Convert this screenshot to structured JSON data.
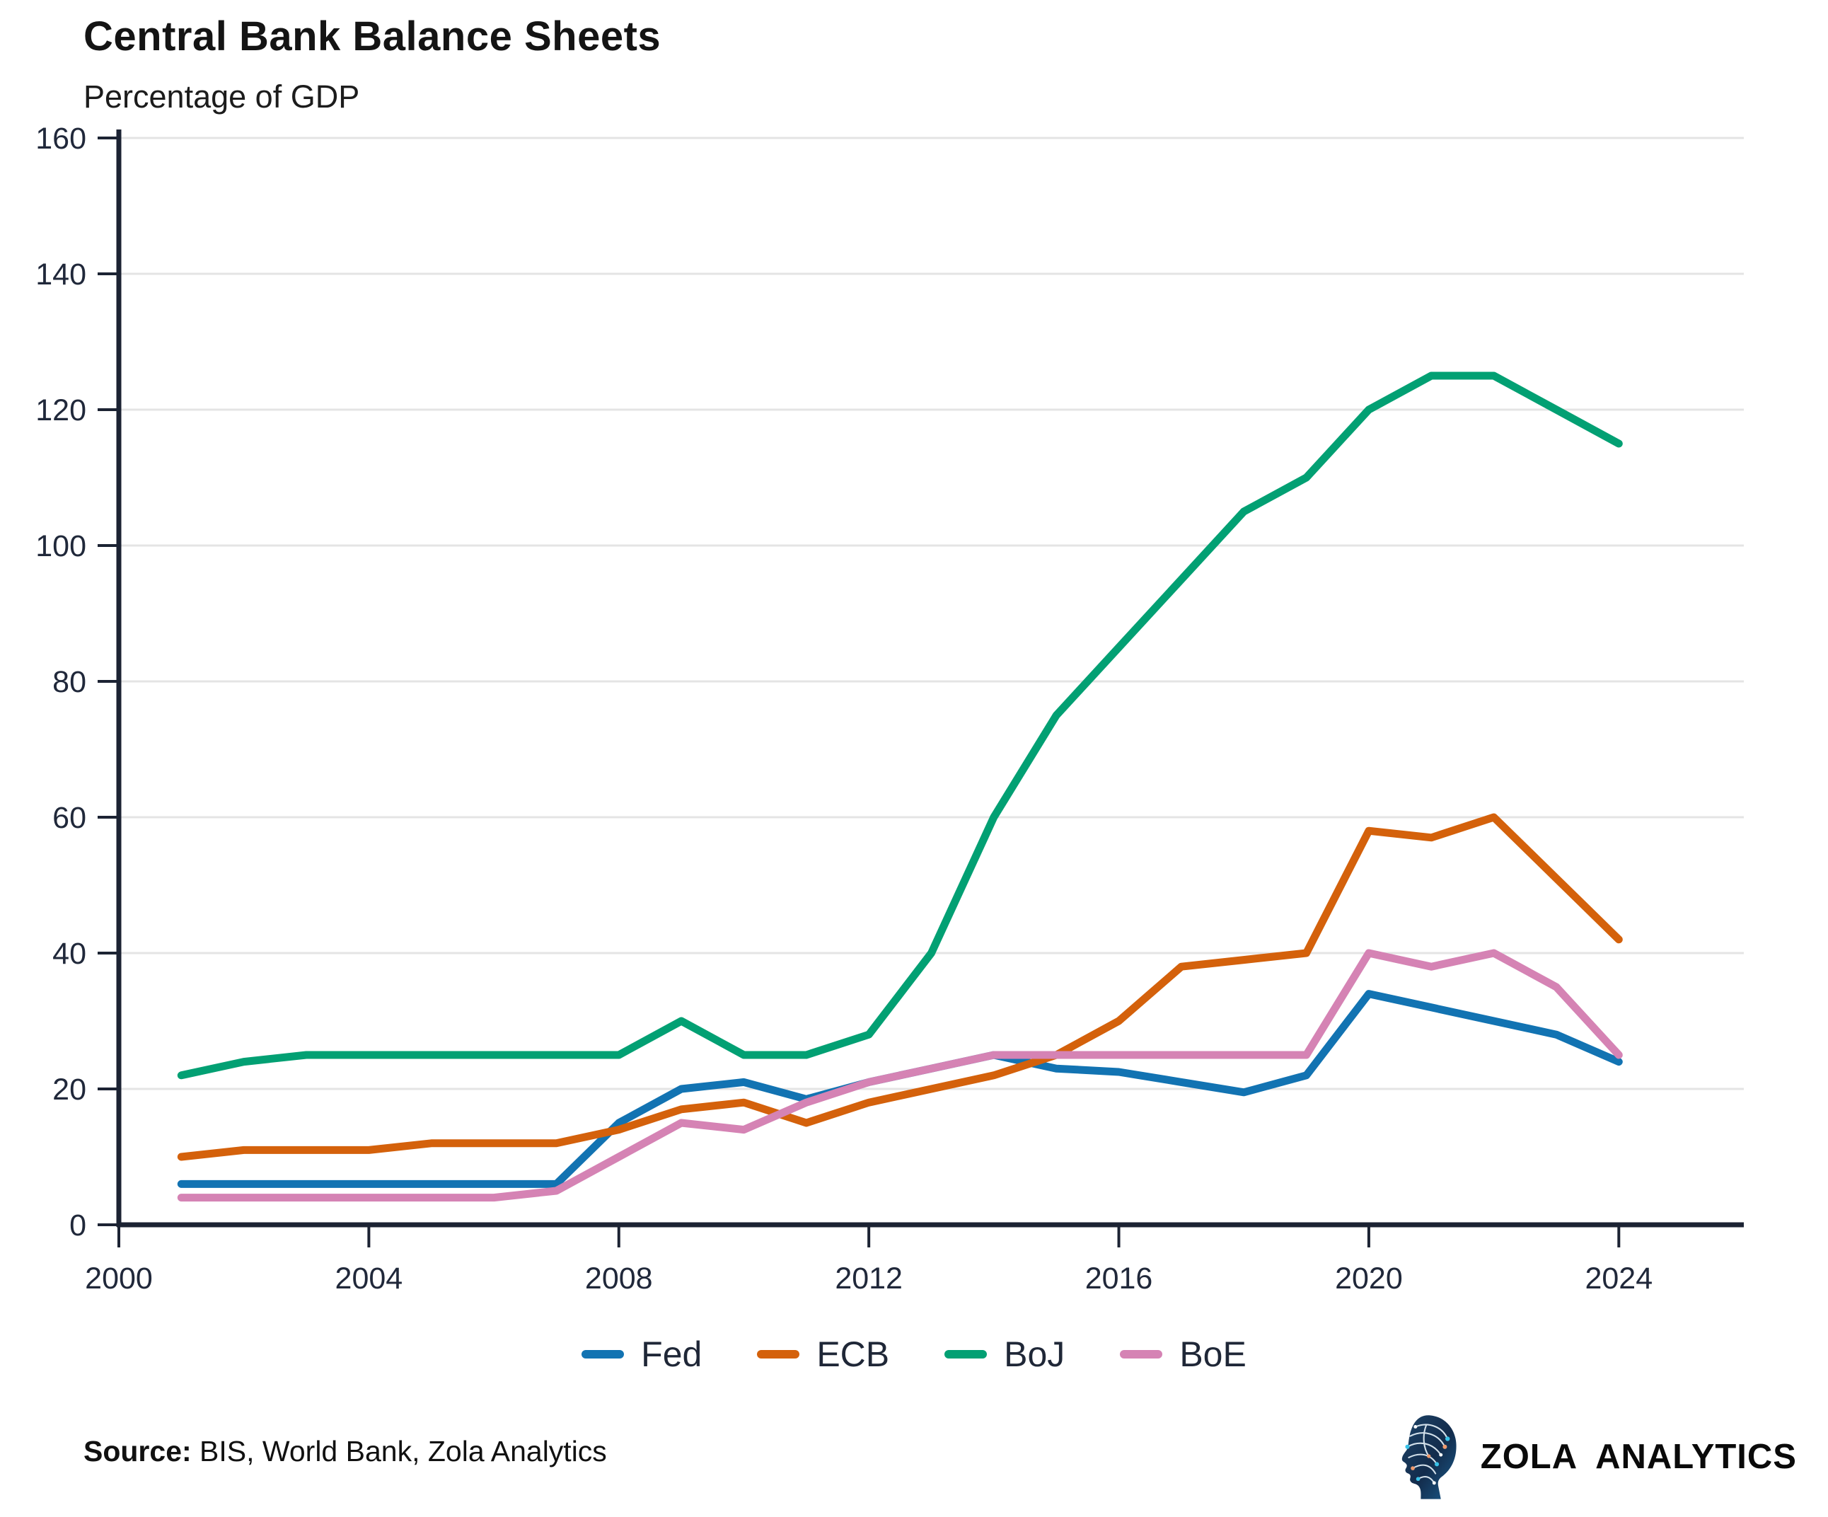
{
  "header": {
    "title": "Central Bank Balance Sheets",
    "subtitle": "Percentage of GDP"
  },
  "chart_data": {
    "type": "line",
    "title": "Central Bank Balance Sheets",
    "subtitle": "Percentage of GDP",
    "xlabel": "",
    "ylabel": "Percentage of GDP",
    "x": [
      2001,
      2002,
      2003,
      2004,
      2005,
      2006,
      2007,
      2008,
      2009,
      2010,
      2011,
      2012,
      2013,
      2014,
      2015,
      2016,
      2017,
      2018,
      2019,
      2020,
      2021,
      2022,
      2023,
      2024
    ],
    "series": [
      {
        "name": "Fed",
        "color": "#1273b2",
        "values": [
          6,
          6,
          6,
          6,
          6,
          6,
          6,
          15,
          20,
          21,
          18.5,
          21,
          23,
          25,
          23,
          22.5,
          21,
          19.5,
          22,
          34,
          32,
          30,
          28,
          24
        ]
      },
      {
        "name": "ECB",
        "color": "#d4610b",
        "values": [
          10,
          11,
          11,
          11,
          12,
          12,
          12,
          14,
          17,
          18,
          15,
          18,
          20,
          22,
          25,
          30,
          38,
          39,
          40,
          58,
          57,
          60,
          51,
          42
        ]
      },
      {
        "name": "BoJ",
        "color": "#02a073",
        "values": [
          22,
          24,
          25,
          25,
          25,
          25,
          25,
          25,
          30,
          25,
          25,
          28,
          40,
          60,
          75,
          85,
          95,
          105,
          110,
          120,
          125,
          125,
          120,
          115
        ]
      },
      {
        "name": "BoE",
        "color": "#d583b4",
        "values": [
          4,
          4,
          4,
          4,
          4,
          4,
          5,
          10,
          15,
          14,
          18,
          21,
          23,
          25,
          25,
          25,
          25,
          25,
          25,
          40,
          38,
          40,
          35,
          25
        ]
      }
    ],
    "xlim": [
      2000,
      2026
    ],
    "ylim": [
      0,
      160
    ],
    "x_ticks": [
      2000,
      2004,
      2008,
      2012,
      2016,
      2020,
      2024
    ],
    "y_ticks": [
      0,
      20,
      40,
      60,
      80,
      100,
      120,
      140,
      160
    ],
    "grid": "horizontal",
    "legend_position": "bottom"
  },
  "legend": {
    "items": [
      {
        "label": "Fed",
        "color": "#1273b2"
      },
      {
        "label": "ECB",
        "color": "#d4610b"
      },
      {
        "label": "BoJ",
        "color": "#02a073"
      },
      {
        "label": "BoE",
        "color": "#d583b4"
      }
    ]
  },
  "footer": {
    "source_label": "Source:",
    "source_text": " BIS, World Bank, Zola Analytics",
    "brand_name": "ZOLA ANALYTICS"
  },
  "style": {
    "axis_color": "#1c2333",
    "grid_color": "#e4e4e4",
    "tick_text_color": "#20283a"
  }
}
